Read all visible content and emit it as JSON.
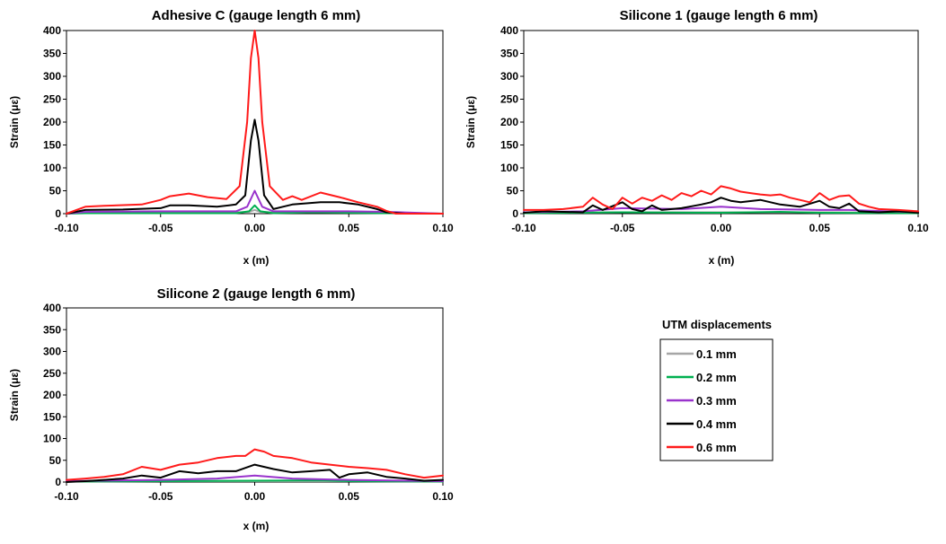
{
  "legend": {
    "title": "UTM displacements",
    "entries": [
      {
        "label": "0.1 mm",
        "color": "#a6a6a6"
      },
      {
        "label": "0.2 mm",
        "color": "#00b050"
      },
      {
        "label": "0.3 mm",
        "color": "#9933cc"
      },
      {
        "label": "0.4 mm",
        "color": "#000000"
      },
      {
        "label": "0.6 mm",
        "color": "#ff1a1a"
      }
    ]
  },
  "chart_data": [
    {
      "type": "line",
      "title": "Adhesive C (gauge length 6 mm)",
      "xlabel": "x (m)",
      "ylabel": "Strain (με)",
      "xlim": [
        -0.1,
        0.1
      ],
      "ylim": [
        0,
        400
      ],
      "xticks": [
        "-0.10",
        "-0.05",
        "0.00",
        "0.05",
        "0.10"
      ],
      "yticks": [
        "0",
        "50",
        "100",
        "150",
        "200",
        "250",
        "300",
        "350",
        "400"
      ],
      "series": [
        {
          "name": "0.1 mm",
          "x": [
            -0.1,
            -0.09,
            -0.05,
            -0.01,
            -0.003,
            0,
            0.003,
            0.01,
            0.05,
            0.07,
            0.1
          ],
          "y": [
            0,
            2,
            3,
            3,
            4,
            8,
            4,
            3,
            3,
            2,
            0
          ]
        },
        {
          "name": "0.2 mm",
          "x": [
            -0.1,
            -0.09,
            -0.05,
            -0.01,
            -0.003,
            0,
            0.003,
            0.01,
            0.03,
            0.05,
            0.07,
            0.1
          ],
          "y": [
            0,
            1,
            1,
            1,
            5,
            18,
            5,
            1,
            3,
            2,
            1,
            0
          ]
        },
        {
          "name": "0.3 mm",
          "x": [
            -0.1,
            -0.09,
            -0.05,
            -0.01,
            -0.004,
            0,
            0.004,
            0.01,
            0.05,
            0.07,
            0.1
          ],
          "y": [
            0,
            4,
            5,
            5,
            15,
            50,
            15,
            5,
            5,
            4,
            0
          ]
        },
        {
          "name": "0.4 mm",
          "x": [
            -0.1,
            -0.09,
            -0.07,
            -0.05,
            -0.045,
            -0.035,
            -0.02,
            -0.01,
            -0.005,
            -0.002,
            0,
            0.002,
            0.005,
            0.01,
            0.015,
            0.02,
            0.035,
            0.045,
            0.055,
            0.065,
            0.07,
            0.08,
            0.1
          ],
          "y": [
            0,
            8,
            9,
            12,
            18,
            18,
            15,
            20,
            40,
            160,
            205,
            160,
            40,
            10,
            15,
            20,
            25,
            25,
            20,
            10,
            3,
            0,
            0
          ]
        },
        {
          "name": "0.6 mm",
          "x": [
            -0.1,
            -0.09,
            -0.08,
            -0.06,
            -0.05,
            -0.045,
            -0.035,
            -0.025,
            -0.015,
            -0.008,
            -0.004,
            -0.002,
            0,
            0.002,
            0.004,
            0.008,
            0.015,
            0.02,
            0.025,
            0.035,
            0.045,
            0.055,
            0.065,
            0.07,
            0.075,
            0.1
          ],
          "y": [
            0,
            15,
            17,
            20,
            30,
            38,
            44,
            36,
            32,
            60,
            200,
            340,
            400,
            340,
            200,
            60,
            30,
            38,
            30,
            46,
            36,
            25,
            15,
            6,
            0,
            0
          ]
        }
      ]
    },
    {
      "type": "line",
      "title": "Silicone 1 (gauge length 6 mm)",
      "xlabel": "x (m)",
      "ylabel": "Strain (με)",
      "xlim": [
        -0.1,
        0.1
      ],
      "ylim": [
        0,
        400
      ],
      "xticks": [
        "-0.10",
        "-0.05",
        "0.00",
        "0.05",
        "0.10"
      ],
      "yticks": [
        "0",
        "50",
        "100",
        "150",
        "200",
        "250",
        "300",
        "350",
        "400"
      ],
      "series": [
        {
          "name": "0.1 mm",
          "x": [
            -0.1,
            -0.05,
            0,
            0.05,
            0.1
          ],
          "y": [
            2,
            3,
            3,
            3,
            2
          ]
        },
        {
          "name": "0.2 mm",
          "x": [
            -0.1,
            -0.05,
            0,
            0.03,
            0.05,
            0.1
          ],
          "y": [
            1,
            3,
            2,
            4,
            2,
            1
          ]
        },
        {
          "name": "0.3 mm",
          "x": [
            -0.1,
            -0.07,
            -0.05,
            -0.02,
            0,
            0.02,
            0.05,
            0.065,
            0.1
          ],
          "y": [
            3,
            5,
            12,
            10,
            15,
            10,
            8,
            8,
            3
          ]
        },
        {
          "name": "0.4 mm",
          "x": [
            -0.1,
            -0.09,
            -0.08,
            -0.07,
            -0.065,
            -0.06,
            -0.05,
            -0.045,
            -0.04,
            -0.035,
            -0.03,
            -0.02,
            -0.01,
            -0.005,
            0,
            0.005,
            0.01,
            0.02,
            0.03,
            0.04,
            0.05,
            0.055,
            0.06,
            0.065,
            0.07,
            0.08,
            0.09,
            0.1
          ],
          "y": [
            2,
            5,
            4,
            3,
            18,
            8,
            25,
            10,
            5,
            18,
            8,
            12,
            20,
            25,
            35,
            28,
            25,
            30,
            20,
            15,
            28,
            15,
            12,
            22,
            5,
            3,
            5,
            2
          ]
        },
        {
          "name": "0.6 mm",
          "x": [
            -0.1,
            -0.09,
            -0.08,
            -0.07,
            -0.065,
            -0.06,
            -0.055,
            -0.05,
            -0.045,
            -0.04,
            -0.035,
            -0.03,
            -0.025,
            -0.02,
            -0.015,
            -0.01,
            -0.005,
            0,
            0.005,
            0.01,
            0.015,
            0.02,
            0.025,
            0.03,
            0.035,
            0.04,
            0.045,
            0.05,
            0.055,
            0.06,
            0.065,
            0.07,
            0.075,
            0.08,
            0.09,
            0.1
          ],
          "y": [
            8,
            8,
            10,
            15,
            35,
            20,
            10,
            35,
            22,
            35,
            28,
            40,
            30,
            45,
            38,
            50,
            42,
            60,
            55,
            48,
            45,
            42,
            40,
            42,
            35,
            30,
            25,
            45,
            30,
            38,
            40,
            22,
            15,
            10,
            8,
            5
          ]
        }
      ]
    },
    {
      "type": "line",
      "title": "Silicone 2 (gauge length 6 mm)",
      "xlabel": "x (m)",
      "ylabel": "Strain (με)",
      "xlim": [
        -0.1,
        0.1
      ],
      "ylim": [
        0,
        400
      ],
      "xticks": [
        "-0.10",
        "-0.05",
        "0.00",
        "0.05",
        "0.10"
      ],
      "yticks": [
        "0",
        "50",
        "100",
        "150",
        "200",
        "250",
        "300",
        "350",
        "400"
      ],
      "series": [
        {
          "name": "0.1 mm",
          "x": [
            -0.1,
            -0.05,
            0,
            0.05,
            0.1
          ],
          "y": [
            1,
            2,
            2,
            2,
            1
          ]
        },
        {
          "name": "0.2 mm",
          "x": [
            -0.1,
            -0.05,
            0,
            0.035,
            0.05,
            0.1
          ],
          "y": [
            1,
            2,
            3,
            4,
            2,
            1
          ]
        },
        {
          "name": "0.3 mm",
          "x": [
            -0.1,
            -0.05,
            -0.02,
            0,
            0.02,
            0.05,
            0.1
          ],
          "y": [
            2,
            5,
            8,
            15,
            8,
            5,
            2
          ]
        },
        {
          "name": "0.4 mm",
          "x": [
            -0.1,
            -0.09,
            -0.08,
            -0.07,
            -0.06,
            -0.05,
            -0.04,
            -0.03,
            -0.02,
            -0.01,
            0,
            0.01,
            0.02,
            0.03,
            0.04,
            0.045,
            0.05,
            0.06,
            0.07,
            0.08,
            0.09,
            0.1
          ],
          "y": [
            0,
            2,
            5,
            8,
            15,
            10,
            25,
            20,
            25,
            25,
            40,
            30,
            22,
            25,
            28,
            10,
            18,
            22,
            12,
            8,
            3,
            5
          ]
        },
        {
          "name": "0.6 mm",
          "x": [
            -0.1,
            -0.09,
            -0.08,
            -0.07,
            -0.06,
            -0.05,
            -0.04,
            -0.03,
            -0.02,
            -0.01,
            -0.005,
            0,
            0.005,
            0.01,
            0.02,
            0.03,
            0.04,
            0.05,
            0.06,
            0.07,
            0.08,
            0.09,
            0.1
          ],
          "y": [
            5,
            8,
            12,
            18,
            35,
            28,
            40,
            45,
            55,
            60,
            60,
            75,
            70,
            60,
            55,
            45,
            40,
            35,
            32,
            28,
            18,
            10,
            15
          ]
        }
      ]
    }
  ]
}
